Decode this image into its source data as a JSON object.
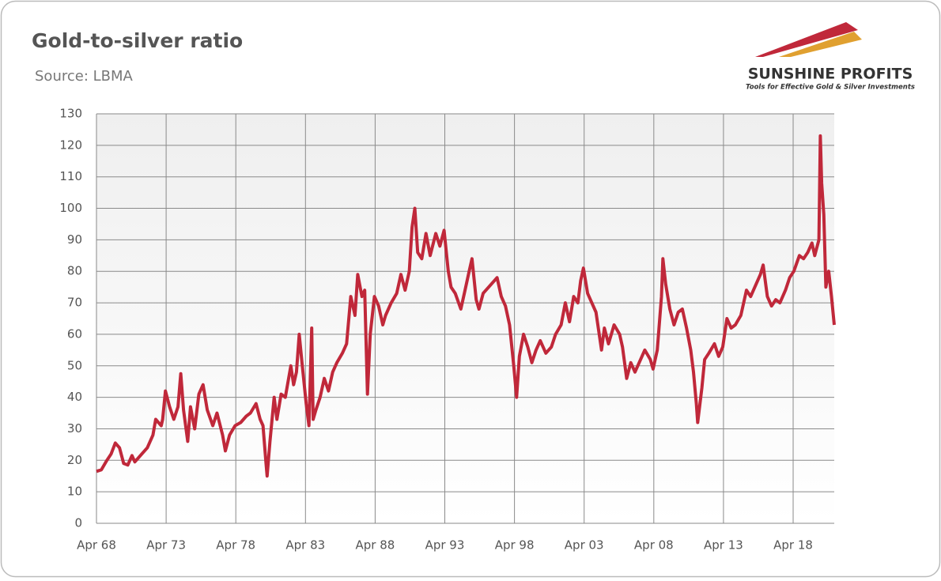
{
  "chart_data": {
    "type": "line",
    "title": "Gold-to-silver ratio",
    "subtitle": "Source: LBMA",
    "logo": {
      "name": "SUNSHINE PROFITS",
      "tagline": "Tools for Effective Gold & Silver Investments"
    },
    "x": [
      1968.25,
      1968.6,
      1969.0,
      1969.3,
      1969.6,
      1969.9,
      1970.2,
      1970.5,
      1970.8,
      1971.0,
      1971.5,
      1971.9,
      1972.3,
      1972.5,
      1972.9,
      1973.0,
      1973.2,
      1973.5,
      1973.8,
      1974.1,
      1974.3,
      1974.5,
      1974.8,
      1975.0,
      1975.3,
      1975.6,
      1975.9,
      1976.2,
      1976.6,
      1976.9,
      1977.3,
      1977.5,
      1977.8,
      1978.2,
      1978.6,
      1979.0,
      1979.3,
      1979.7,
      1980.0,
      1980.2,
      1980.4,
      1980.5,
      1980.7,
      1981.0,
      1981.2,
      1981.5,
      1981.8,
      1982.0,
      1982.2,
      1982.4,
      1982.6,
      1982.8,
      1983.0,
      1983.3,
      1983.5,
      1983.7,
      1983.8,
      1984.0,
      1984.3,
      1984.6,
      1984.9,
      1985.2,
      1985.5,
      1985.9,
      1986.2,
      1986.5,
      1986.8,
      1987.0,
      1987.3,
      1987.5,
      1987.7,
      1987.9,
      1988.2,
      1988.5,
      1988.8,
      1989.0,
      1989.4,
      1989.8,
      1990.1,
      1990.4,
      1990.7,
      1990.9,
      1991.1,
      1991.3,
      1991.6,
      1991.9,
      1992.2,
      1992.6,
      1992.9,
      1993.2,
      1993.5,
      1993.7,
      1994.0,
      1994.4,
      1994.7,
      1995.0,
      1995.2,
      1995.5,
      1995.7,
      1996.0,
      1996.4,
      1996.8,
      1997.0,
      1997.3,
      1997.6,
      1997.9,
      1998.2,
      1998.4,
      1998.6,
      1998.9,
      1999.2,
      1999.5,
      1999.8,
      2000.1,
      2000.5,
      2000.9,
      2001.2,
      2001.6,
      2001.9,
      2002.2,
      2002.5,
      2002.8,
      2003.0,
      2003.2,
      2003.5,
      2003.8,
      2004.1,
      2004.3,
      2004.5,
      2004.7,
      2005.0,
      2005.4,
      2005.8,
      2006.0,
      2006.3,
      2006.6,
      2006.9,
      2007.2,
      2007.6,
      2008.0,
      2008.2,
      2008.5,
      2008.8,
      2008.9,
      2009.1,
      2009.4,
      2009.7,
      2010.0,
      2010.3,
      2010.6,
      2010.9,
      2011.1,
      2011.3,
      2011.4,
      2011.7,
      2011.9,
      2012.2,
      2012.6,
      2012.9,
      2013.2,
      2013.5,
      2013.8,
      2014.1,
      2014.5,
      2014.9,
      2015.2,
      2015.6,
      2015.9,
      2016.1,
      2016.4,
      2016.7,
      2017.0,
      2017.3,
      2017.7,
      2018.0,
      2018.3,
      2018.7,
      2019.0,
      2019.3,
      2019.6,
      2019.8,
      2020.1,
      2020.2,
      2020.3,
      2020.45,
      2020.6,
      2020.8,
      2021.0,
      2021.2
    ],
    "series": [
      {
        "name": "Gold-to-silver ratio",
        "color": "#c0283a",
        "values": [
          16.5,
          17,
          20,
          22,
          25.5,
          24,
          19,
          18.5,
          21.5,
          19.5,
          22,
          24,
          28,
          33,
          31,
          33,
          42,
          37,
          33,
          37,
          47.5,
          36,
          26,
          37,
          30,
          41,
          44,
          36,
          31,
          35,
          28,
          23,
          28,
          31,
          32,
          34,
          35,
          38,
          33,
          31,
          20,
          15,
          26,
          40,
          33,
          41,
          40,
          45,
          50,
          44,
          48,
          60,
          51,
          38,
          31,
          62,
          33,
          36,
          40,
          46,
          42,
          48,
          51,
          54,
          57,
          72,
          66,
          79,
          72,
          74,
          41,
          60,
          72,
          69,
          63,
          66,
          70,
          73,
          79,
          74,
          80,
          94,
          100,
          86,
          84,
          92,
          85,
          92,
          88,
          93,
          80,
          75,
          73,
          68,
          74,
          80,
          84,
          71,
          68,
          73,
          75,
          77,
          78,
          72,
          69,
          63,
          50,
          40,
          53,
          60,
          56,
          51,
          55,
          58,
          54,
          56,
          60,
          63,
          70,
          64,
          72,
          70,
          77,
          81,
          73,
          70,
          67,
          61,
          55,
          62,
          57,
          63,
          60,
          56,
          46,
          51,
          48,
          51,
          55,
          52,
          49,
          55,
          72,
          84,
          76,
          68,
          63,
          67,
          68,
          62,
          55,
          48,
          38,
          32,
          43,
          52,
          54,
          57,
          53,
          56,
          65,
          62,
          63,
          66,
          74,
          72,
          76,
          79,
          82,
          72,
          69,
          71,
          70,
          74,
          78,
          80,
          85,
          84,
          86,
          89,
          85,
          90,
          123,
          108,
          98,
          75,
          80,
          72,
          63
        ]
      }
    ],
    "xlim": [
      1968.25,
      2021.2
    ],
    "ylim": [
      0,
      130
    ],
    "xticks": [
      {
        "value": 1968.25,
        "label": "Apr 68"
      },
      {
        "value": 1973.25,
        "label": "Apr 73"
      },
      {
        "value": 1978.25,
        "label": "Apr 78"
      },
      {
        "value": 1983.25,
        "label": "Apr 83"
      },
      {
        "value": 1988.25,
        "label": "Apr 88"
      },
      {
        "value": 1993.25,
        "label": "Apr 93"
      },
      {
        "value": 1998.25,
        "label": "Apr 98"
      },
      {
        "value": 2003.25,
        "label": "Apr 03"
      },
      {
        "value": 2008.25,
        "label": "Apr 08"
      },
      {
        "value": 2013.25,
        "label": "Apr 13"
      },
      {
        "value": 2018.25,
        "label": "Apr 18"
      }
    ],
    "yticks": [
      0,
      10,
      20,
      30,
      40,
      50,
      60,
      70,
      80,
      90,
      100,
      110,
      120,
      130
    ],
    "grid": true
  }
}
